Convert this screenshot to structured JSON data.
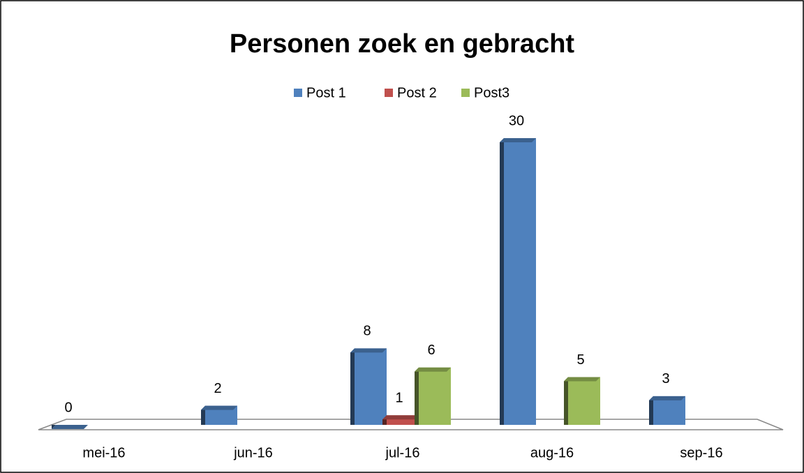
{
  "chart_data": {
    "type": "bar",
    "title": "Personen zoek en gebracht",
    "categories": [
      "mei-16",
      "jun-16",
      "jul-16",
      "aug-16",
      "sep-16"
    ],
    "series": [
      {
        "name": "Post 1",
        "color": "#4f81bd",
        "values": [
          0,
          2,
          8,
          30,
          3
        ]
      },
      {
        "name": "Post 2",
        "color": "#c0504d",
        "values": [
          null,
          null,
          1,
          null,
          null
        ]
      },
      {
        "name": "Post3",
        "color": "#9bbb59",
        "values": [
          null,
          null,
          6,
          5,
          null
        ]
      }
    ],
    "ylim": [
      0,
      30
    ],
    "legend": "top"
  }
}
